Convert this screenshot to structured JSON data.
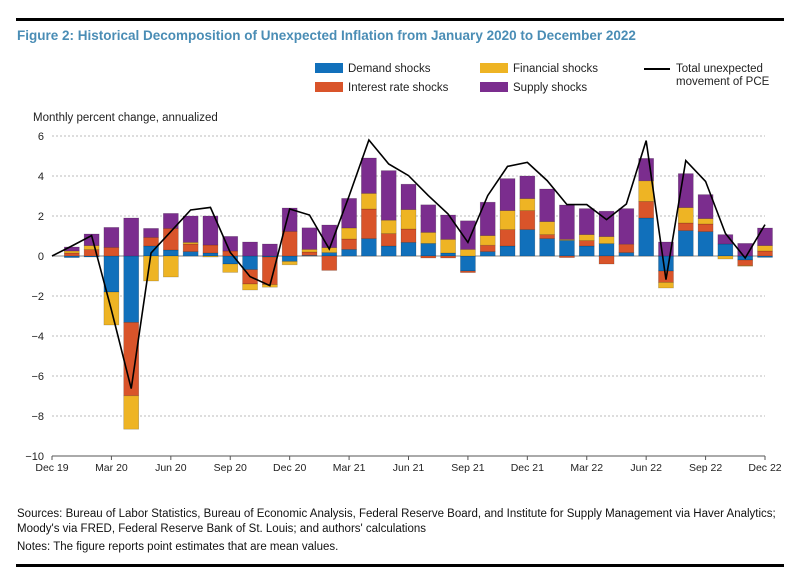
{
  "title": "Figure 2: Historical Decomposition of Unexpected Inflation from January 2020 to December 2022",
  "sources": "Sources: Bureau of Labor Statistics, Bureau of Economic Analysis, Federal Reserve Board, and Institute for Supply Management via Haver Analytics; Moody's via FRED, Federal Reserve Bank of St. Louis; and authors' calculations",
  "notes": "Notes: The figure reports point estimates that are mean values.",
  "chart_data": {
    "type": "bar",
    "subtype": "stacked bar with line overlay",
    "ylabel": "Monthly percent change, annualized",
    "ylim": [
      -10,
      6
    ],
    "yticks": [
      6,
      4,
      2,
      0,
      -2,
      -4,
      -6,
      -8,
      -10
    ],
    "ytick_labels": [
      "6",
      "4",
      "2",
      "0",
      "−2",
      "−4",
      "−6",
      "−8",
      "−10"
    ],
    "xtick_labels": [
      "Dec 19",
      "Mar 20",
      "Jun 20",
      "Sep 20",
      "Dec 20",
      "Mar 21",
      "Jun 21",
      "Sep 21",
      "Dec 21",
      "Mar 22",
      "Jun 22",
      "Sep 22",
      "Dec 22"
    ],
    "grid": true,
    "legend_placement": "top-right",
    "categories": [
      "Jan 20",
      "Feb 20",
      "Mar 20",
      "Apr 20",
      "May 20",
      "Jun 20",
      "Jul 20",
      "Aug 20",
      "Sep 20",
      "Oct 20",
      "Nov 20",
      "Dec 20",
      "Jan 21",
      "Feb 21",
      "Mar 21",
      "Apr 21",
      "May 21",
      "Jun 21",
      "Jul 21",
      "Aug 21",
      "Sep 21",
      "Oct 21",
      "Nov 21",
      "Dec 21",
      "Jan 22",
      "Feb 22",
      "Mar 22",
      "Apr 22",
      "May 22",
      "Jun 22",
      "Jul 22",
      "Aug 22",
      "Sep 22",
      "Oct 22",
      "Nov 22",
      "Dec 22"
    ],
    "series": [
      {
        "name": "Demand shocks",
        "color": "#1170bb",
        "values": [
          -0.08,
          -0.05,
          -1.8,
          -3.32,
          0.5,
          0.3,
          0.22,
          0.15,
          -0.4,
          -0.68,
          -0.05,
          -0.27,
          0.03,
          0.17,
          0.33,
          0.87,
          0.5,
          0.68,
          0.63,
          0.15,
          -0.75,
          0.22,
          0.5,
          1.32,
          0.87,
          0.78,
          0.5,
          0.62,
          0.17,
          1.9,
          -0.75,
          1.27,
          1.22,
          0.6,
          -0.2,
          -0.07
        ]
      },
      {
        "name": "Interest rate shocks",
        "color": "#d9542a",
        "values": [
          0.15,
          0.32,
          0.43,
          -3.67,
          0.43,
          1.08,
          0.38,
          0.4,
          0.25,
          -0.72,
          -1.38,
          1.23,
          0.17,
          -0.72,
          0.52,
          1.48,
          0.62,
          0.67,
          -0.1,
          -0.1,
          -0.08,
          0.32,
          0.82,
          0.95,
          0.2,
          -0.08,
          0.27,
          -0.4,
          0.42,
          0.83,
          -0.57,
          0.38,
          0.38,
          0.0,
          -0.28,
          0.25
        ]
      },
      {
        "name": "Financial shocks",
        "color": "#eeb424",
        "values": [
          0.1,
          0.2,
          -1.65,
          -1.67,
          -1.25,
          -1.05,
          0.08,
          -0.05,
          -0.42,
          -0.3,
          -0.13,
          -0.17,
          0.13,
          0.25,
          0.55,
          0.78,
          0.67,
          0.97,
          0.55,
          0.68,
          0.33,
          0.48,
          0.95,
          0.6,
          0.65,
          0.05,
          0.3,
          0.35,
          0.0,
          1.03,
          -0.28,
          0.77,
          0.27,
          -0.15,
          -0.03,
          0.27
        ]
      },
      {
        "name": "Supply shocks",
        "color": "#7b2d8e",
        "values": [
          0.2,
          0.58,
          1.0,
          1.9,
          0.45,
          0.75,
          1.32,
          1.45,
          0.73,
          0.7,
          0.6,
          1.17,
          1.08,
          1.13,
          1.48,
          1.77,
          2.48,
          1.27,
          1.38,
          1.22,
          1.43,
          1.67,
          1.6,
          1.13,
          1.63,
          1.72,
          1.3,
          1.27,
          1.78,
          1.12,
          0.7,
          1.7,
          1.2,
          0.47,
          0.63,
          0.88
        ]
      }
    ],
    "line": {
      "name": "Total unexpected movement of PCE",
      "color": "#000000",
      "x": [
        "Dec 19",
        "Jan 20",
        "Feb 20",
        "Mar 20",
        "Apr 20",
        "May 20",
        "Jun 20",
        "Jul 20",
        "Aug 20",
        "Sep 20",
        "Oct 20",
        "Nov 20",
        "Dec 20",
        "Jan 21",
        "Feb 21",
        "Mar 21",
        "Apr 21",
        "May 21",
        "Jun 21",
        "Jul 21",
        "Aug 21",
        "Sep 21",
        "Oct 21",
        "Nov 21",
        "Dec 21",
        "Jan 22",
        "Feb 22",
        "Mar 22",
        "Apr 22",
        "May 22",
        "Jun 22",
        "Jul 22",
        "Aug 22",
        "Sep 22",
        "Oct 22",
        "Nov 22",
        "Dec 22"
      ],
      "values": [
        0,
        0.5,
        1.02,
        -2.7,
        -6.63,
        0.15,
        1.22,
        2.3,
        2.43,
        0.18,
        -1.03,
        -1.48,
        2.35,
        2.05,
        0.35,
        3.0,
        5.8,
        4.6,
        4.02,
        3.02,
        2.1,
        0.68,
        3.02,
        4.48,
        4.68,
        3.77,
        2.57,
        2.57,
        1.82,
        2.6,
        5.77,
        -1.18,
        4.77,
        3.73,
        1.13,
        -0.1,
        1.57
      ]
    },
    "legend": {
      "demand": "Demand shocks",
      "interest": "Interest rate shocks",
      "financial": "Financial shocks",
      "supply": "Supply shocks",
      "line_1": "Total unexpected",
      "line_2": "movement of PCE"
    }
  }
}
